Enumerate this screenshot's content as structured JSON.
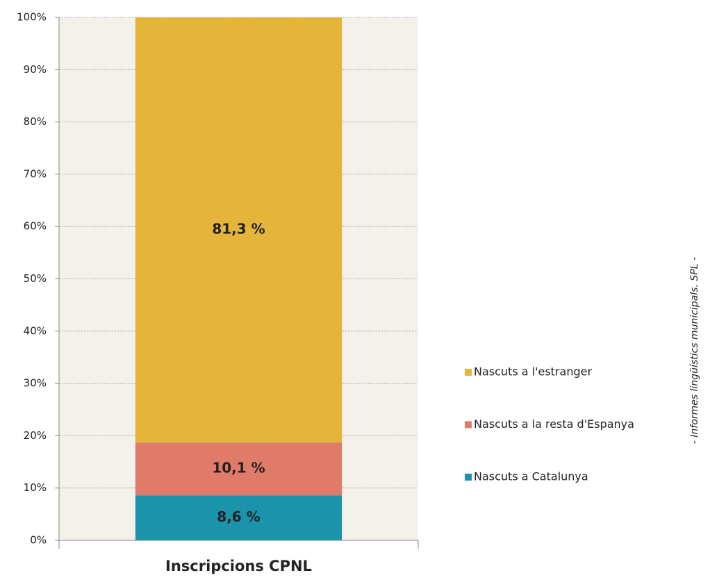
{
  "chart_data": {
    "type": "stacked_bar",
    "categories": [
      "Inscripcions CPNL"
    ],
    "series": [
      {
        "name": "Nascuts a Catalunya",
        "color": "#1a93ab",
        "values": [
          8.6
        ],
        "value_labels": [
          "8,6 %"
        ]
      },
      {
        "name": "Nascuts a la resta d'Espanya",
        "color": "#e07b6a",
        "values": [
          10.1
        ],
        "value_labels": [
          "10,1 %"
        ]
      },
      {
        "name": "Nascuts a l'estranger",
        "color": "#e5b53a",
        "values": [
          81.3
        ],
        "value_labels": [
          "81,3 %"
        ]
      }
    ],
    "ylim": [
      0,
      100
    ],
    "yticks": [
      {
        "value": 0,
        "label": "0%"
      },
      {
        "value": 10,
        "label": "10%"
      },
      {
        "value": 20,
        "label": "20%"
      },
      {
        "value": 30,
        "label": "30%"
      },
      {
        "value": 40,
        "label": "40%"
      },
      {
        "value": 50,
        "label": "50%"
      },
      {
        "value": 60,
        "label": "60%"
      },
      {
        "value": 70,
        "label": "70%"
      },
      {
        "value": 80,
        "label": "80%"
      },
      {
        "value": 90,
        "label": "90%"
      },
      {
        "value": 100,
        "label": "100%"
      }
    ],
    "grid": true,
    "legend": "right",
    "source": "- Informes lingüístics municipals. SPL -"
  }
}
